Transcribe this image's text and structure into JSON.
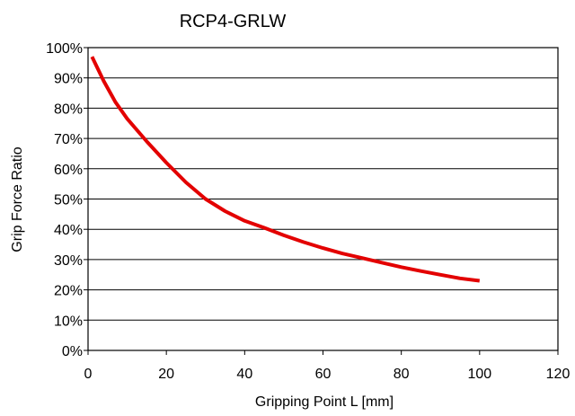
{
  "chart_data": {
    "type": "line",
    "title": "RCP4-GRLW",
    "xlabel": "Gripping Point L [mm]",
    "ylabel": "Grip Force Ratio",
    "xlim": [
      0,
      120
    ],
    "ylim": [
      0,
      100
    ],
    "x_ticks": [
      0,
      20,
      40,
      60,
      80,
      100,
      120
    ],
    "x_tick_labels": [
      "0",
      "20",
      "40",
      "60",
      "80",
      "100",
      "120"
    ],
    "y_ticks": [
      0,
      10,
      20,
      30,
      40,
      50,
      60,
      70,
      80,
      90,
      100
    ],
    "y_tick_labels": [
      "0%",
      "10%",
      "20%",
      "30%",
      "40%",
      "50%",
      "60%",
      "70%",
      "80%",
      "90%",
      "100%"
    ],
    "grid": "horizontal",
    "legend": "none",
    "series": [
      {
        "color": "#e30000",
        "x": [
          1,
          4,
          7,
          10,
          15,
          20,
          25,
          30,
          35,
          40,
          45,
          50,
          55,
          60,
          65,
          70,
          75,
          80,
          85,
          90,
          95,
          100
        ],
        "y": [
          97,
          89,
          82,
          76.5,
          69,
          62,
          55.5,
          50,
          46,
          42.8,
          40.5,
          38,
          35.8,
          33.8,
          32,
          30.5,
          29,
          27.5,
          26.2,
          25,
          23.8,
          23
        ]
      }
    ]
  }
}
